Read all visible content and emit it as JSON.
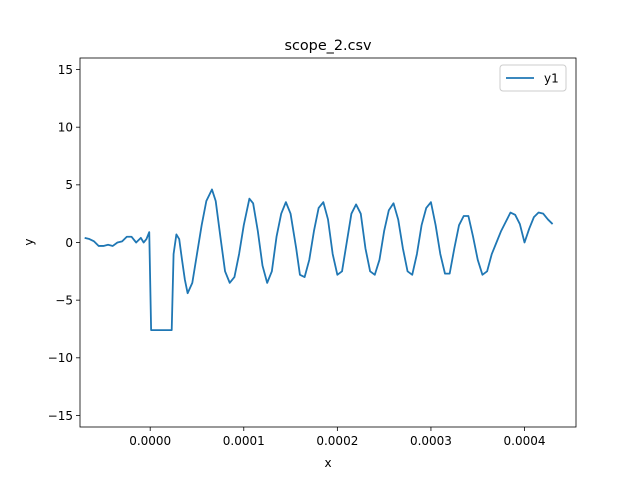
{
  "chart_data": {
    "type": "line",
    "title": "scope_2.csv",
    "xlabel": "x",
    "ylabel": "y",
    "xlim": [
      -7.5e-05,
      0.000455
    ],
    "ylim": [
      -16,
      16
    ],
    "xticks": [
      0.0,
      0.0001,
      0.0002,
      0.0003,
      0.0004
    ],
    "xtick_labels": [
      "0.0000",
      "0.0001",
      "0.0002",
      "0.0003",
      "0.0004"
    ],
    "yticks": [
      -15,
      -10,
      -5,
      0,
      5,
      10,
      15
    ],
    "ytick_labels": [
      "−15",
      "−10",
      "−5",
      "0",
      "5",
      "10",
      "15"
    ],
    "grid": false,
    "legend": {
      "position": "upper right",
      "entries": [
        "y1"
      ]
    },
    "series": [
      {
        "name": "y1",
        "color": "#1f77b4",
        "x": [
          -7e-05,
          -6.5e-05,
          -6e-05,
          -5.5e-05,
          -5e-05,
          -4.5e-05,
          -4e-05,
          -3.5e-05,
          -3e-05,
          -2.5e-05,
          -2e-05,
          -1.5e-05,
          -1e-05,
          -7e-06,
          -4e-06,
          -1e-06,
          1e-06,
          2e-06,
          4e-06,
          8e-06,
          1.2e-05,
          1.6e-05,
          2e-05,
          2.3e-05,
          2.5e-05,
          2.8e-05,
          3.1e-05,
          3.4e-05,
          3.7e-05,
          4e-05,
          4.5e-05,
          5e-05,
          5.5e-05,
          6e-05,
          6.6e-05,
          7e-05,
          7.5e-05,
          8e-05,
          8.5e-05,
          9e-05,
          9.5e-05,
          0.0001,
          0.000106,
          0.00011,
          0.000115,
          0.00012,
          0.000125,
          0.00013,
          0.000135,
          0.00014,
          0.000145,
          0.00015,
          0.000156,
          0.00016,
          0.000165,
          0.00017,
          0.000175,
          0.00018,
          0.000185,
          0.00019,
          0.000195,
          0.0002,
          0.000205,
          0.00021,
          0.000215,
          0.00022,
          0.000225,
          0.00023,
          0.000235,
          0.00024,
          0.000245,
          0.00025,
          0.000255,
          0.00026,
          0.000265,
          0.00027,
          0.000275,
          0.00028,
          0.000285,
          0.00029,
          0.000295,
          0.0003,
          0.000305,
          0.00031,
          0.000315,
          0.00032,
          0.000325,
          0.00033,
          0.000335,
          0.00034,
          0.000345,
          0.00035,
          0.000355,
          0.00036,
          0.000365,
          0.00037,
          0.000375,
          0.00038,
          0.000385,
          0.00039,
          0.000395,
          0.0004,
          0.000405,
          0.00041,
          0.000415,
          0.00042,
          0.000425,
          0.00043
        ],
        "y": [
          0.4,
          0.3,
          0.1,
          -0.3,
          -0.3,
          -0.2,
          -0.3,
          0.0,
          0.1,
          0.5,
          0.5,
          0.0,
          0.4,
          0.0,
          0.3,
          0.9,
          -7.6,
          -7.6,
          -7.6,
          -7.6,
          -7.6,
          -7.6,
          -7.6,
          -7.6,
          -1.0,
          0.7,
          0.3,
          -1.5,
          -3.2,
          -4.4,
          -3.5,
          -1.0,
          1.5,
          3.6,
          4.6,
          3.6,
          0.5,
          -2.5,
          -3.5,
          -3.0,
          -1.0,
          1.5,
          3.8,
          3.4,
          1.0,
          -2.0,
          -3.5,
          -2.5,
          0.5,
          2.5,
          3.5,
          2.5,
          -0.5,
          -2.8,
          -3.0,
          -1.5,
          1.0,
          3.0,
          3.5,
          2.0,
          -1.0,
          -2.8,
          -2.5,
          0.0,
          2.5,
          3.3,
          2.5,
          -0.5,
          -2.5,
          -2.8,
          -1.5,
          1.0,
          2.8,
          3.4,
          2.0,
          -0.5,
          -2.5,
          -2.8,
          -1.0,
          1.5,
          3.0,
          3.5,
          1.5,
          -1.0,
          -2.7,
          -2.7,
          -0.5,
          1.5,
          2.3,
          2.3,
          0.5,
          -1.5,
          -2.8,
          -2.5,
          -1.0,
          0.0,
          1.0,
          1.8,
          2.6,
          2.4,
          1.6,
          0.0,
          1.2,
          2.2,
          2.6,
          2.5,
          2.0,
          1.6
        ]
      }
    ]
  }
}
